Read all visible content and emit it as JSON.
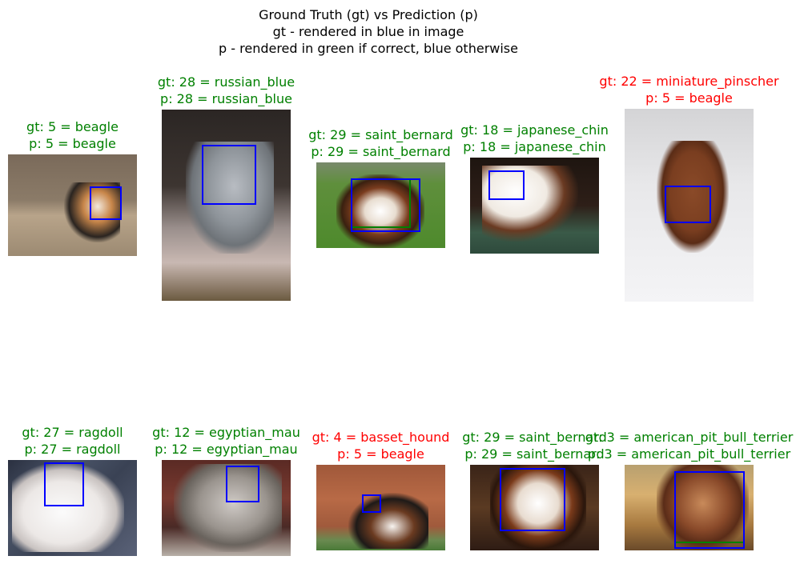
{
  "title_lines": [
    "Ground Truth (gt) vs Prediction (p)",
    "gt - rendered in blue in image",
    "p - rendered in green if correct, blue otherwise"
  ],
  "colors": {
    "correct": "#008000",
    "incorrect": "#ff0000",
    "gt_box": "#0000ff",
    "pred_box_correct": "#008000",
    "pred_box_incorrect": "#0000ff"
  },
  "chart_data": {
    "type": "table",
    "panels": [
      {
        "gt_id": 5,
        "gt_label": "beagle",
        "p_id": 5,
        "p_label": "beagle",
        "correct": true,
        "gt_text": "gt: 5 = beagle",
        "p_text": "p: 5 = beagle",
        "photo": "beagle puppy on dirt"
      },
      {
        "gt_id": 28,
        "gt_label": "russian_blue",
        "p_id": 28,
        "p_label": "russian_blue",
        "correct": true,
        "gt_text": "gt: 28 = russian_blue",
        "p_text": "p: 28 = russian_blue",
        "photo": "grey cat on carpet"
      },
      {
        "gt_id": 29,
        "gt_label": "saint_bernard",
        "p_id": 29,
        "p_label": "saint_bernard",
        "correct": true,
        "gt_text": "gt: 29 = saint_bernard",
        "p_text": "p: 29 = saint_bernard",
        "photo": "saint bernard on grass"
      },
      {
        "gt_id": 18,
        "gt_label": "japanese_chin",
        "p_id": 18,
        "p_label": "japanese_chin",
        "correct": true,
        "gt_text": "gt: 18 = japanese_chin",
        "p_text": "p: 18 = japanese_chin",
        "photo": "japanese chin on rug"
      },
      {
        "gt_id": 22,
        "gt_label": "miniature_pinscher",
        "p_id": 5,
        "p_label": "beagle",
        "correct": false,
        "gt_text": "gt: 22 = miniature_pinscher",
        "p_text": "p: 5 = beagle",
        "photo": "brown dog on white floor"
      },
      {
        "gt_id": 27,
        "gt_label": "ragdoll",
        "p_id": 27,
        "p_label": "ragdoll",
        "correct": true,
        "gt_text": "gt: 27 = ragdoll",
        "p_text": "p: 27 = ragdoll",
        "photo": "white cat on plaid blanket"
      },
      {
        "gt_id": 12,
        "gt_label": "egyptian_mau",
        "p_id": 12,
        "p_label": "egyptian_mau",
        "correct": true,
        "gt_text": "gt: 12 = egyptian_mau",
        "p_text": "p: 12 = egyptian_mau",
        "photo": "tabby cat on cushion"
      },
      {
        "gt_id": 4,
        "gt_label": "basset_hound",
        "p_id": 5,
        "p_label": "beagle",
        "correct": false,
        "gt_text": "gt: 4 = basset_hound",
        "p_text": "p: 5 = beagle",
        "photo": "basset hound by wooden fence"
      },
      {
        "gt_id": 29,
        "gt_label": "saint_bernard",
        "p_id": 29,
        "p_label": "saint_bernard",
        "correct": true,
        "gt_text": "gt: 29 = saint_bernard",
        "p_text": "p: 29 = saint_bernard",
        "photo": "saint bernard close-up"
      },
      {
        "gt_id": 3,
        "gt_label": "american_pit_bull_terrier",
        "p_id": 3,
        "p_label": "american_pit_bull_terrier",
        "correct": true,
        "gt_text": "gt: 3 = american_pit_bull_terrier",
        "p_text": "p: 3 = american_pit_bull_terrier",
        "photo": "brown pit bull portrait"
      }
    ]
  }
}
